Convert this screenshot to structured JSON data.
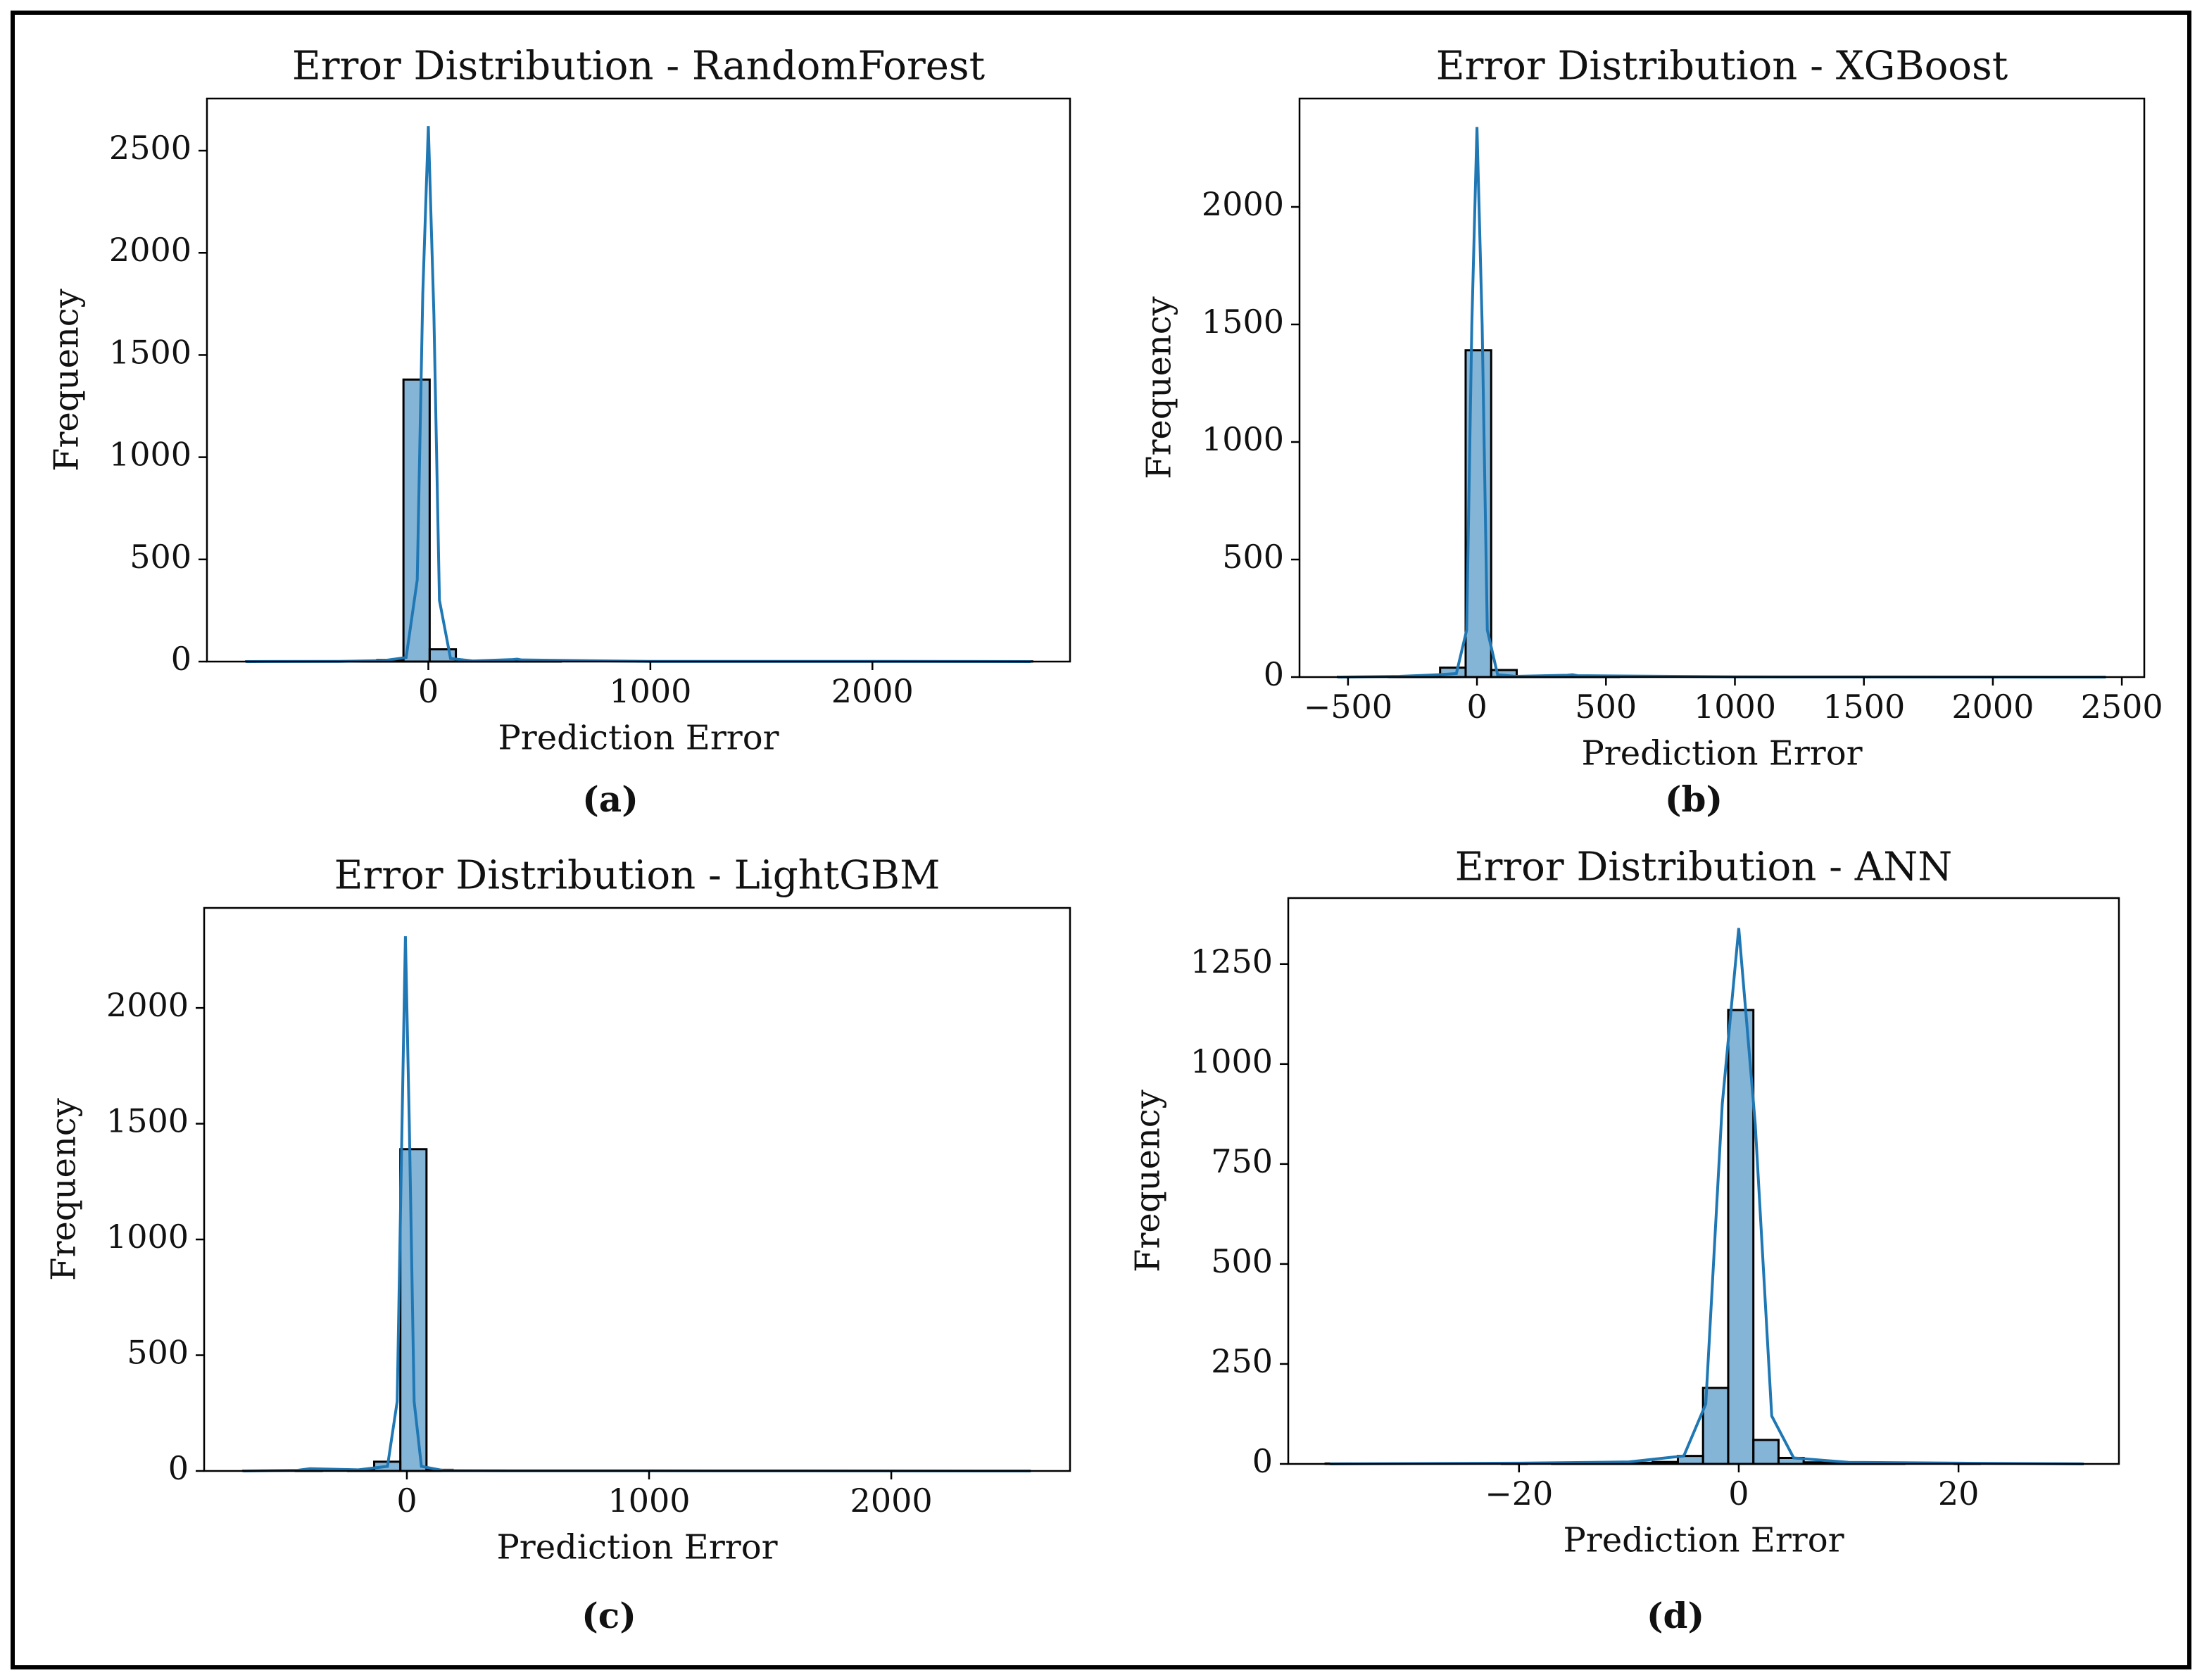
{
  "chart_data": [
    {
      "type": "histogram",
      "title": "Error Distribution - RandomForest",
      "x_label": "Prediction Error",
      "y_label": "Frequency",
      "caption": "(a)",
      "color": "#1f77b4",
      "edge_color": "#000000",
      "bins": [
        -820,
        -702,
        -584,
        -466,
        -348,
        -230,
        -112,
        6,
        124,
        242,
        360,
        478,
        596,
        714,
        832,
        950,
        1068,
        1186,
        1304,
        1422,
        1540,
        1658,
        1776,
        1894,
        2012,
        2130,
        2248,
        2366,
        2484,
        2602,
        2720
      ],
      "counts": [
        1,
        0,
        0,
        1,
        2,
        8,
        1380,
        60,
        3,
        5,
        2,
        1,
        0,
        0,
        0,
        0,
        0,
        0,
        0,
        0,
        0,
        0,
        0,
        0,
        0,
        0,
        0,
        0,
        0,
        1
      ],
      "kde": {
        "x": [
          -820,
          -400,
          -200,
          -100,
          -50,
          -25,
          0,
          25,
          50,
          100,
          200,
          380,
          400,
          420,
          1000,
          2000,
          2713
        ],
        "values": [
          0,
          1,
          5,
          20,
          400,
          1800,
          2620,
          1700,
          300,
          15,
          3,
          10,
          12,
          8,
          1,
          1,
          0
        ]
      },
      "xlim": [
        -997,
        2890
      ],
      "xticks": [
        0,
        1000,
        2000
      ],
      "ylim": [
        0,
        2755
      ],
      "yticks": [
        0,
        500,
        1000,
        1500,
        2000,
        2500
      ]
    },
    {
      "type": "histogram",
      "title": "Error Distribution - XGBoost",
      "x_label": "Prediction Error",
      "y_label": "Frequency",
      "caption": "(b)",
      "color": "#1f77b4",
      "edge_color": "#000000",
      "bins": [
        -539,
        -440,
        -341,
        -242,
        -143,
        -44,
        55,
        154,
        253,
        352,
        451,
        550,
        649,
        748,
        847,
        946,
        1045,
        1144,
        1243,
        1342,
        1441,
        1540,
        1639,
        1738,
        1837,
        1936,
        2035,
        2134,
        2233,
        2332,
        2431
      ],
      "counts": [
        1,
        0,
        2,
        4,
        40,
        1390,
        30,
        2,
        3,
        2,
        1,
        0,
        0,
        0,
        0,
        0,
        0,
        0,
        0,
        0,
        0,
        0,
        0,
        0,
        0,
        0,
        0,
        0,
        0,
        1
      ],
      "kde": {
        "x": [
          -539,
          -300,
          -150,
          -80,
          -40,
          -20,
          0,
          20,
          40,
          80,
          150,
          350,
          370,
          390,
          1000,
          2438
        ],
        "values": [
          0,
          3,
          10,
          15,
          200,
          1500,
          2340,
          1500,
          200,
          10,
          3,
          8,
          10,
          6,
          1,
          0
        ]
      },
      "xlim": [
        -688,
        2587
      ],
      "xticks": [
        {
          "value": -500,
          "label": "−500"
        },
        0,
        500,
        1000,
        1500,
        2000,
        2500
      ],
      "ylim": [
        0,
        2461
      ],
      "yticks": [
        0,
        500,
        1000,
        1500,
        2000
      ]
    },
    {
      "type": "histogram",
      "title": "Error Distribution - LightGBM",
      "x_label": "Prediction Error",
      "y_label": "Frequency",
      "caption": "(c)",
      "color": "#1f77b4",
      "edge_color": "#000000",
      "bins": [
        -675,
        -567,
        -459,
        -351,
        -243,
        -135,
        -27,
        81,
        189,
        297,
        405,
        513,
        621,
        729,
        837,
        945,
        1053,
        1161,
        1269,
        1377,
        1485,
        1593,
        1701,
        1809,
        1917,
        2025,
        2133,
        2241,
        2349,
        2457,
        2565
      ],
      "counts": [
        1,
        0,
        2,
        0,
        3,
        40,
        1390,
        5,
        2,
        2,
        1,
        0,
        0,
        0,
        0,
        0,
        0,
        0,
        0,
        0,
        0,
        0,
        0,
        0,
        0,
        0,
        0,
        0,
        0,
        1
      ],
      "kde": {
        "x": [
          -675,
          -450,
          -400,
          -200,
          -80,
          -40,
          -20,
          -6,
          10,
          30,
          60,
          150,
          400,
          1000,
          2576
        ],
        "values": [
          0,
          3,
          10,
          5,
          20,
          300,
          1500,
          2310,
          1500,
          300,
          20,
          2,
          1,
          1,
          0
        ]
      },
      "xlim": [
        -837,
        2738
      ],
      "xticks": [
        0,
        1000,
        2000
      ],
      "ylim": [
        0,
        2432
      ],
      "yticks": [
        0,
        500,
        1000,
        1500,
        2000
      ]
    },
    {
      "type": "histogram",
      "title": "Error Distribution - ANN",
      "x_label": "Prediction Error",
      "y_label": "Frequency",
      "caption": "(d)",
      "color": "#1f77b4",
      "edge_color": "#000000",
      "bins": [
        -37.6,
        -35.31,
        -33.02,
        -30.73,
        -28.44,
        -26.15,
        -23.86,
        -21.57,
        -19.28,
        -16.99,
        -14.7,
        -12.41,
        -10.12,
        -7.83,
        -5.54,
        -3.25,
        -0.96,
        1.33,
        3.62,
        5.91,
        8.2,
        10.49,
        12.78,
        15.07,
        17.36,
        19.65,
        21.94,
        24.23,
        26.52,
        28.81,
        31.1
      ],
      "counts": [
        1,
        0,
        0,
        0,
        0,
        0,
        0,
        1,
        0,
        1,
        1,
        2,
        3,
        5,
        20,
        190,
        1135,
        60,
        15,
        4,
        2,
        1,
        1,
        0,
        0,
        1,
        0,
        0,
        0,
        1
      ],
      "kde": {
        "x": [
          -37.2,
          -20,
          -10,
          -5,
          -3,
          -1.5,
          0,
          1.5,
          3,
          5,
          10,
          20,
          31.4
        ],
        "values": [
          0,
          2,
          5,
          20,
          150,
          900,
          1340,
          850,
          120,
          15,
          4,
          2,
          0
        ]
      },
      "xlim": [
        -41,
        34.6
      ],
      "xticks": [
        {
          "value": -20,
          "label": "−20"
        },
        0,
        20
      ],
      "ylim": [
        0,
        1415
      ],
      "yticks": [
        0,
        250,
        500,
        750,
        1000,
        1250
      ]
    }
  ]
}
